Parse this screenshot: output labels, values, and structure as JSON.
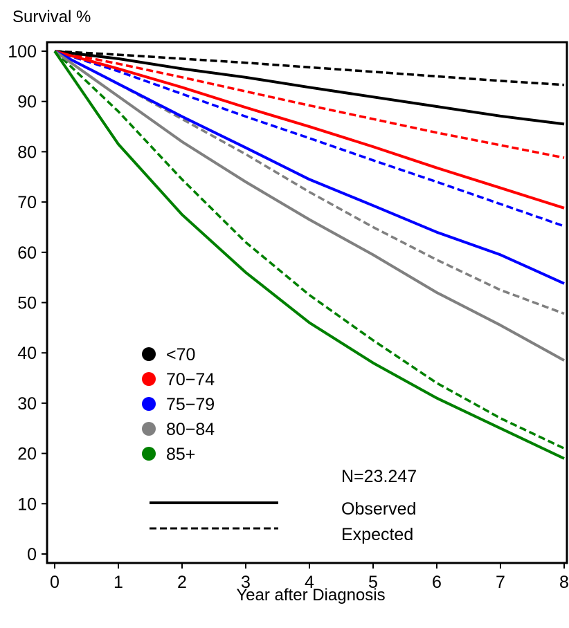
{
  "chart_data": {
    "type": "line",
    "ylabel": "Survival %",
    "xlabel": "Year after Diagnosis",
    "xlim": [
      0,
      8
    ],
    "ylim": [
      0,
      100
    ],
    "xticks": [
      "0",
      "1",
      "2",
      "3",
      "4",
      "5",
      "6",
      "7",
      "8"
    ],
    "yticks": [
      "0",
      "10",
      "20",
      "30",
      "40",
      "50",
      "60",
      "70",
      "80",
      "90",
      "100"
    ],
    "grid": false,
    "legend_placement": "lower-left",
    "legend": [
      {
        "label": "<70",
        "color": "#000000"
      },
      {
        "label": "70−74",
        "color": "#ff0000"
      },
      {
        "label": "75−79",
        "color": "#0000ff"
      },
      {
        "label": "80−84",
        "color": "#808080"
      },
      {
        "label": "85+",
        "color": "#008000"
      }
    ],
    "annotation": "N=23.247",
    "line_style_legend": [
      {
        "label": "Observed",
        "style": "solid"
      },
      {
        "label": "Expected",
        "style": "dashed"
      }
    ],
    "series": [
      {
        "name": "<70",
        "kind": "Observed",
        "color": "#000000",
        "style": "solid",
        "x": [
          0,
          1,
          2,
          3,
          4,
          5,
          6,
          7,
          8
        ],
        "y": [
          100,
          98.5,
          96.5,
          94.8,
          92.8,
          90.9,
          89.0,
          87.1,
          85.5
        ]
      },
      {
        "name": "<70",
        "kind": "Expected",
        "color": "#000000",
        "style": "dashed",
        "x": [
          0,
          1,
          2,
          3,
          4,
          5,
          6,
          7,
          8
        ],
        "y": [
          100,
          99.3,
          98.5,
          97.7,
          96.8,
          95.9,
          95.0,
          94.1,
          93.3
        ]
      },
      {
        "name": "70−74",
        "kind": "Observed",
        "color": "#ff0000",
        "style": "solid",
        "x": [
          0,
          1,
          2,
          3,
          4,
          5,
          6,
          7,
          8
        ],
        "y": [
          100,
          96.5,
          92.8,
          88.8,
          85.0,
          81.0,
          76.8,
          72.8,
          68.8
        ]
      },
      {
        "name": "70−74",
        "kind": "Expected",
        "color": "#ff0000",
        "style": "dashed",
        "x": [
          0,
          1,
          2,
          3,
          4,
          5,
          6,
          7,
          8
        ],
        "y": [
          100,
          97.5,
          94.8,
          92.0,
          89.2,
          86.5,
          83.8,
          81.3,
          78.8
        ]
      },
      {
        "name": "75−79",
        "kind": "Observed",
        "color": "#0000ff",
        "style": "solid",
        "x": [
          0,
          1,
          2,
          3,
          4,
          5,
          6,
          7,
          8
        ],
        "y": [
          100,
          93.5,
          87.0,
          80.8,
          74.5,
          69.3,
          64.0,
          59.5,
          53.8
        ]
      },
      {
        "name": "75−79",
        "kind": "Expected",
        "color": "#0000ff",
        "style": "dashed",
        "x": [
          0,
          1,
          2,
          3,
          4,
          5,
          6,
          7,
          8
        ],
        "y": [
          100,
          96.0,
          91.5,
          87.0,
          82.7,
          78.3,
          74.0,
          69.6,
          65.2
        ]
      },
      {
        "name": "80−84",
        "kind": "Observed",
        "color": "#808080",
        "style": "solid",
        "x": [
          0,
          1,
          2,
          3,
          4,
          5,
          6,
          7,
          8
        ],
        "y": [
          100,
          91.0,
          82.0,
          74.0,
          66.5,
          59.5,
          52.0,
          45.5,
          38.5
        ]
      },
      {
        "name": "80−84",
        "kind": "Expected",
        "color": "#808080",
        "style": "dashed",
        "x": [
          0,
          1,
          2,
          3,
          4,
          5,
          6,
          7,
          8
        ],
        "y": [
          100,
          93.5,
          86.5,
          79.5,
          72.0,
          65.0,
          58.5,
          52.5,
          47.8
        ]
      },
      {
        "name": "85+",
        "kind": "Observed",
        "color": "#008000",
        "style": "solid",
        "x": [
          0,
          1,
          2,
          3,
          4,
          5,
          6,
          7,
          8
        ],
        "y": [
          100,
          81.5,
          67.5,
          56.0,
          46.0,
          38.0,
          31.0,
          25.0,
          19.0
        ]
      },
      {
        "name": "85+",
        "kind": "Expected",
        "color": "#008000",
        "style": "dashed",
        "x": [
          0,
          1,
          2,
          3,
          4,
          5,
          6,
          7,
          8
        ],
        "y": [
          100,
          88.0,
          74.5,
          62.0,
          51.5,
          42.5,
          34.0,
          27.0,
          21.0
        ]
      }
    ]
  }
}
